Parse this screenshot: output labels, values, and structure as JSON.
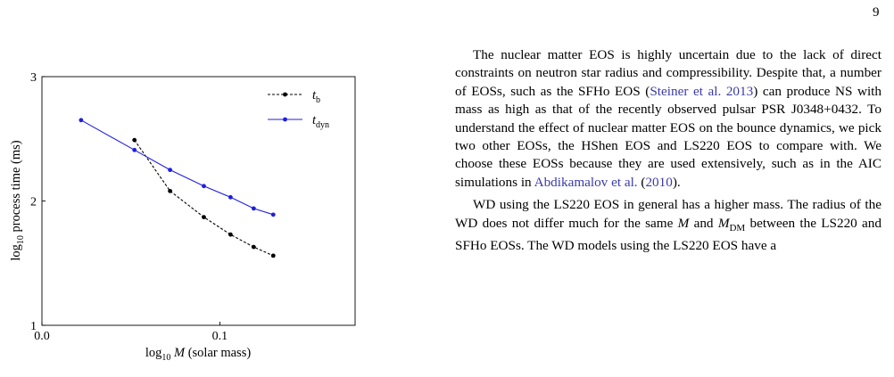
{
  "page": {
    "number": "9"
  },
  "chart_data": {
    "type": "line",
    "xlabel_prefix": "log",
    "xlabel_sub": "10",
    "xlabel_var": "M",
    "xlabel_unit": "(solar mass)",
    "ylabel_prefix": "log",
    "ylabel_sub": "10",
    "ylabel_rest": "process time (ms)",
    "xlim": [
      0.0,
      0.176
    ],
    "ylim": [
      1,
      3
    ],
    "xticks": [
      0.0,
      0.1
    ],
    "xtick_labels": [
      "0.0",
      "0.1"
    ],
    "yticks": [
      1,
      2,
      3
    ],
    "ytick_labels": [
      "1",
      "2",
      "3"
    ],
    "legend_position": "top-right",
    "series": [
      {
        "name_base": "t",
        "name_sub": "b",
        "color": "#000000",
        "line_style": "dashed",
        "x": [
          0.052,
          0.072,
          0.091,
          0.106,
          0.119,
          0.13
        ],
        "y": [
          2.49,
          2.08,
          1.87,
          1.73,
          1.63,
          1.56
        ]
      },
      {
        "name_base": "t",
        "name_sub": "dyn",
        "color": "#1f1fe0",
        "line_style": "solid",
        "x": [
          0.022,
          0.052,
          0.072,
          0.091,
          0.106,
          0.119,
          0.13
        ],
        "y": [
          2.65,
          2.41,
          2.25,
          2.12,
          2.03,
          1.94,
          1.89
        ]
      }
    ]
  },
  "text": {
    "p1": [
      {
        "t": "The nuclear matter EOS is highly uncertain due to the lack of direct constraints on neutron star radius and compressibility. Despite that, a number of EOSs, such as the SFHo EOS ("
      },
      {
        "t": "Steiner et al. 2013",
        "cite": true
      },
      {
        "t": ") can produce NS with mass as high as that of the recently observed pulsar PSR J0348+0432. To understand the effect of nuclear matter EOS on the bounce dynamics, we pick two other EOSs, the HShen EOS and LS220 EOS to compare with. We choose these EOSs because they are used extensively, such as in the AIC simulations in "
      },
      {
        "t": "Abdikamalov et al.",
        "cite": true
      },
      {
        "t": " ("
      },
      {
        "t": "2010",
        "cite": true
      },
      {
        "t": ")."
      }
    ],
    "p2": [
      {
        "t": "WD using the LS220 EOS in general has a higher mass. The radius of the WD does not differ much for the same "
      },
      {
        "t": "M",
        "sym": true
      },
      {
        "t": " and "
      },
      {
        "t": "M",
        "sym": true
      },
      {
        "t": "DM",
        "sub": true
      },
      {
        "t": " between the LS220 and SFHo EOSs. The WD models using the LS220 EOS have a"
      }
    ]
  }
}
